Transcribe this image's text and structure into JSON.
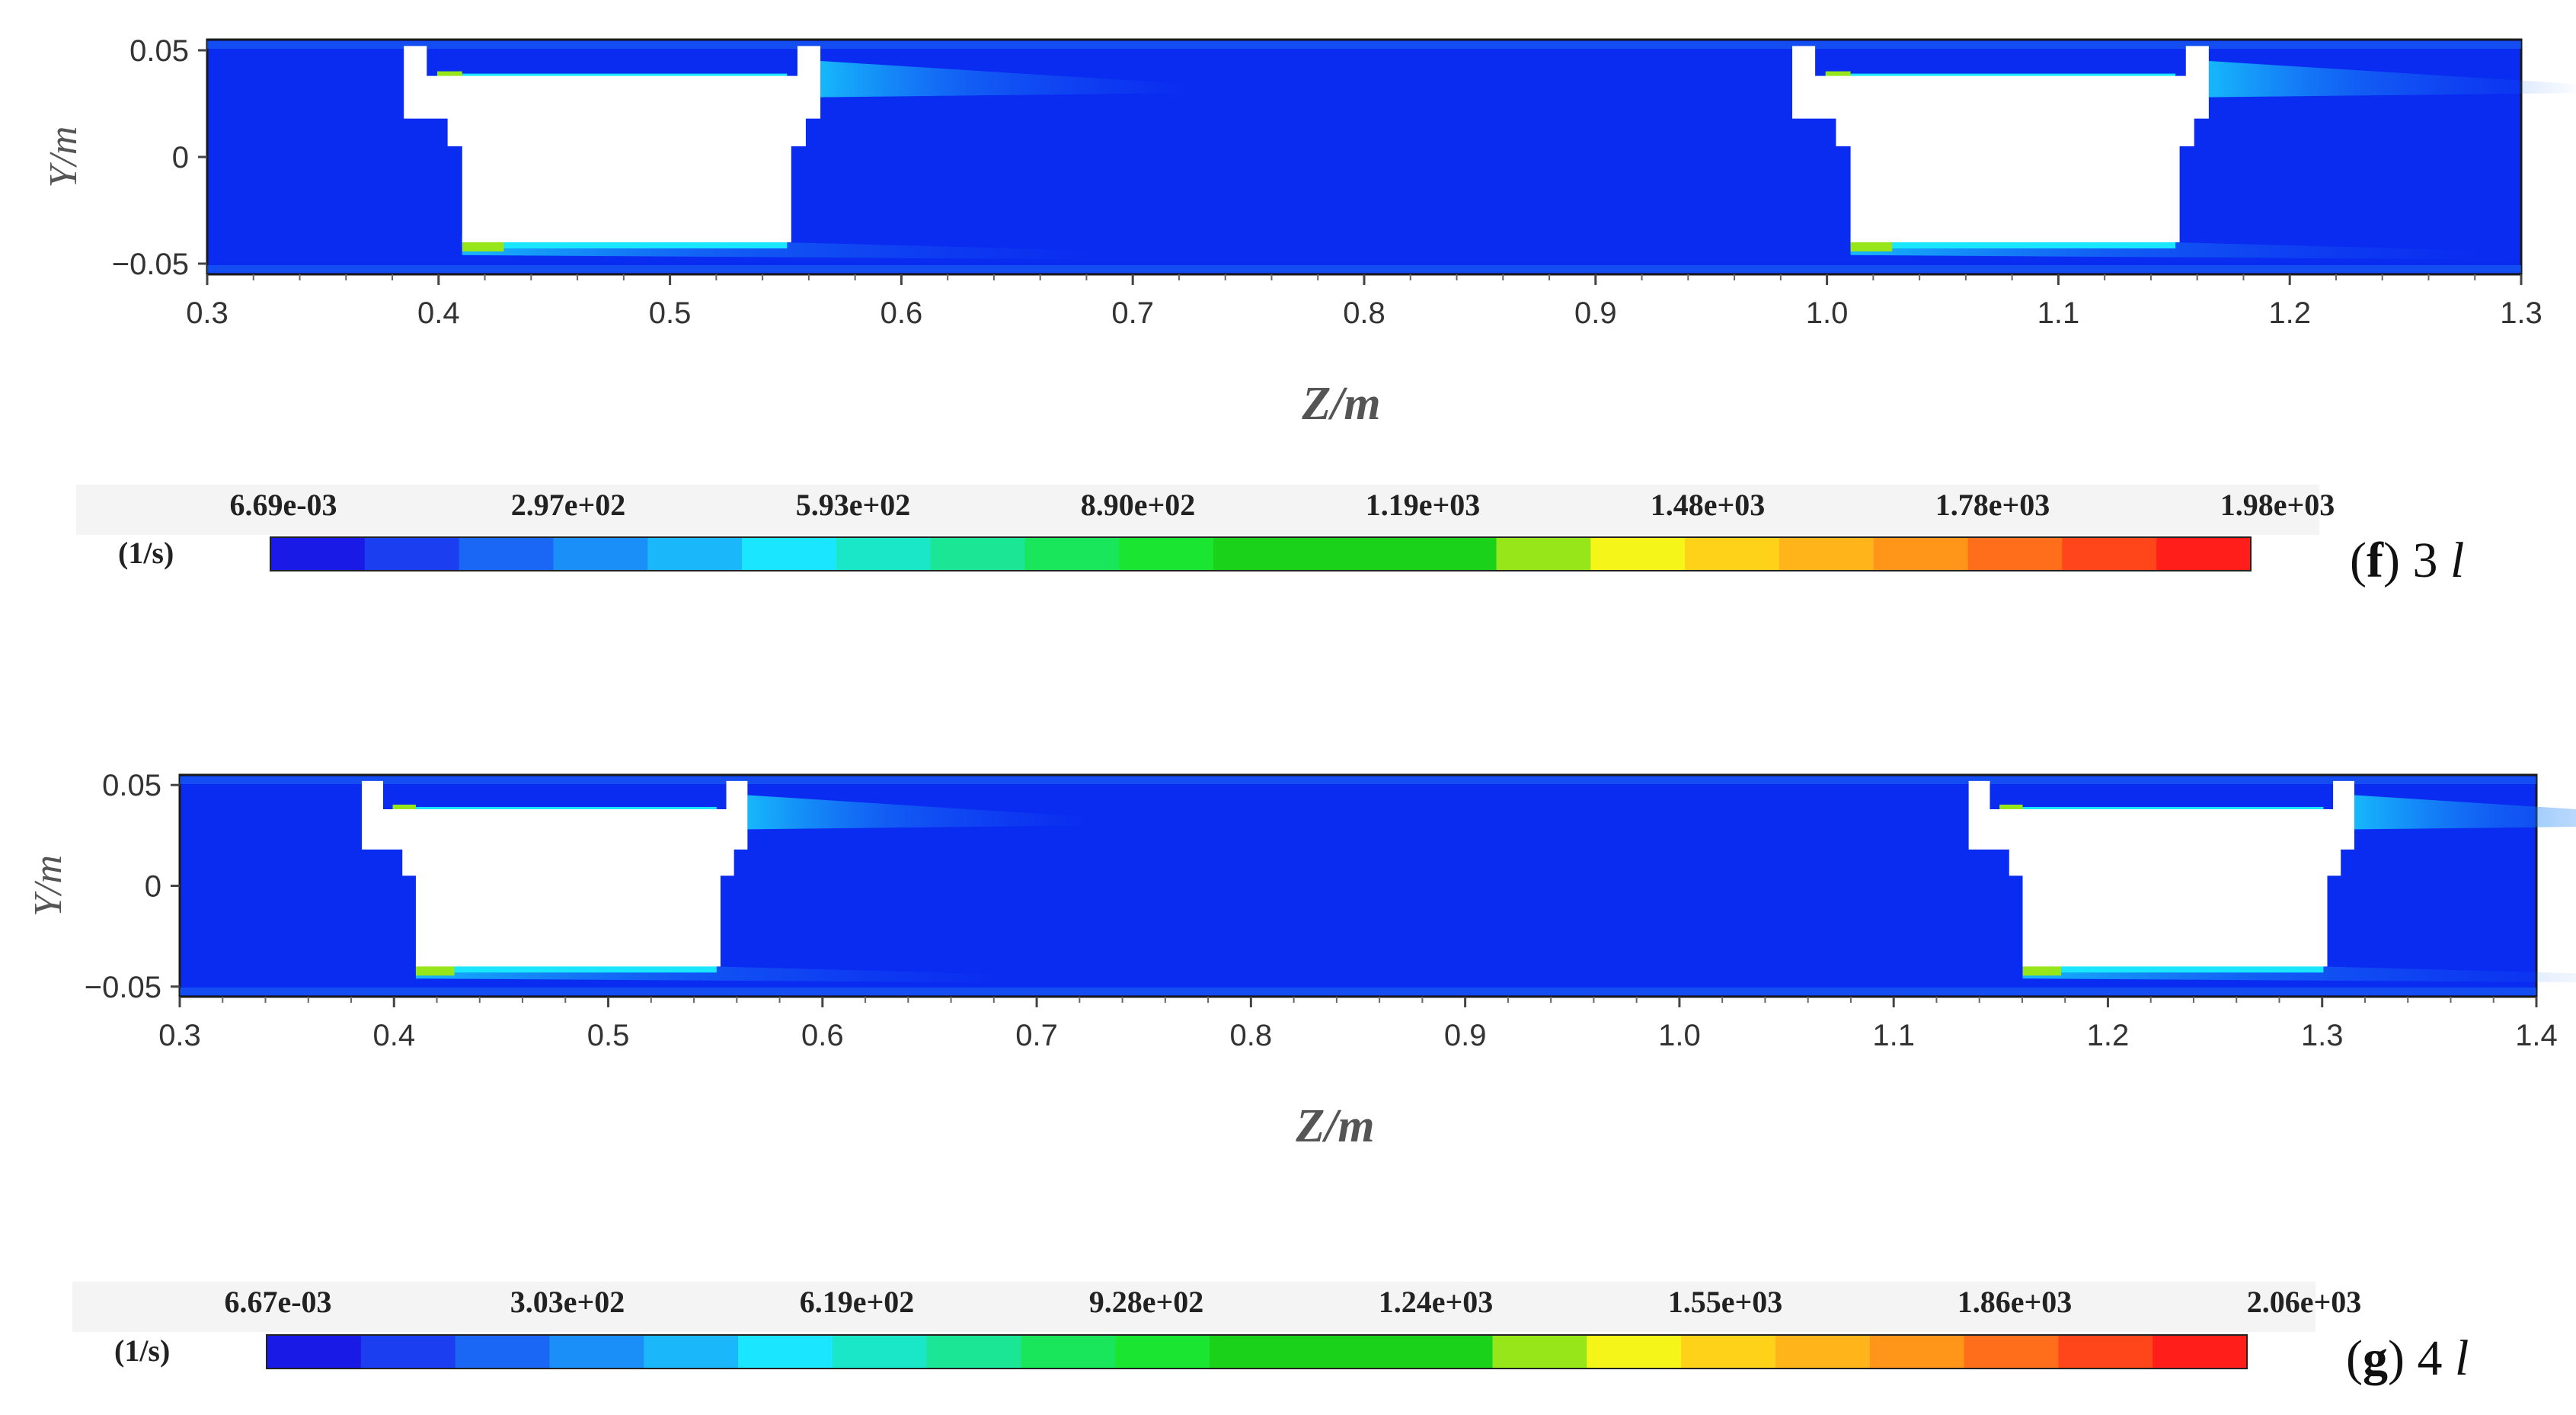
{
  "chart_data": [
    {
      "type": "heatmap",
      "panel_label": "(f) 3 l",
      "panel_letter": "f",
      "panel_text": " 3 ",
      "panel_var": "l",
      "xlabel": "Z/m",
      "ylabel": "Y/m",
      "xlim": [
        0.3,
        1.3
      ],
      "ylim": [
        -0.055,
        0.055
      ],
      "x_ticks": [
        "0.3",
        "0.4",
        "0.5",
        "0.6",
        "0.7",
        "0.8",
        "0.9",
        "1.0",
        "1.1",
        "1.2",
        "1.3"
      ],
      "y_ticks": [
        "0.05",
        "0",
        "−0.05"
      ],
      "y_tick_values": [
        0.05,
        0,
        -0.05
      ],
      "obstacles": [
        {
          "z_start": 0.385,
          "z_end": 0.565
        },
        {
          "z_start": 0.985,
          "z_end": 1.165
        }
      ],
      "colorbar": {
        "unit": "(1/s)",
        "labels": [
          "6.69e-03",
          "2.97e+02",
          "5.93e+02",
          "8.90e+02",
          "1.19e+03",
          "1.48e+03",
          "1.78e+03",
          "1.98e+03"
        ],
        "min": 0.00669,
        "max": 1980
      }
    },
    {
      "type": "heatmap",
      "panel_label": "(g) 4 l",
      "panel_letter": "g",
      "panel_text": " 4 ",
      "panel_var": "l",
      "xlabel": "Z/m",
      "ylabel": "Y/m",
      "xlim": [
        0.3,
        1.4
      ],
      "ylim": [
        -0.055,
        0.055
      ],
      "x_ticks": [
        "0.3",
        "0.4",
        "0.5",
        "0.6",
        "0.7",
        "0.8",
        "0.9",
        "1.0",
        "1.1",
        "1.2",
        "1.3",
        "1.4"
      ],
      "y_ticks": [
        "0.05",
        "0",
        "−0.05"
      ],
      "y_tick_values": [
        0.05,
        0,
        -0.05
      ],
      "obstacles": [
        {
          "z_start": 0.385,
          "z_end": 0.565
        },
        {
          "z_start": 1.135,
          "z_end": 1.315
        }
      ],
      "colorbar": {
        "unit": "(1/s)",
        "labels": [
          "6.67e-03",
          "3.03e+02",
          "6.19e+02",
          "9.28e+02",
          "1.24e+03",
          "1.55e+03",
          "1.86e+03",
          "2.06e+03"
        ],
        "min": 0.00667,
        "max": 2060
      }
    }
  ],
  "colors": {
    "background_field": "#0a2bf0",
    "colorbar_scale": [
      "#1a1ae6",
      "#1a3ef0",
      "#1a66f5",
      "#1a8ff8",
      "#1ab8fb",
      "#1ae6ff",
      "#1ae6c8",
      "#1ae696",
      "#1ae65c",
      "#1ae632",
      "#1ad21a",
      "#1ad21a",
      "#1ad21a",
      "#96e61a",
      "#f5f51a",
      "#ffd21a",
      "#ffb41a",
      "#ff961a",
      "#ff6e1a",
      "#ff461a",
      "#ff1e1a"
    ]
  }
}
